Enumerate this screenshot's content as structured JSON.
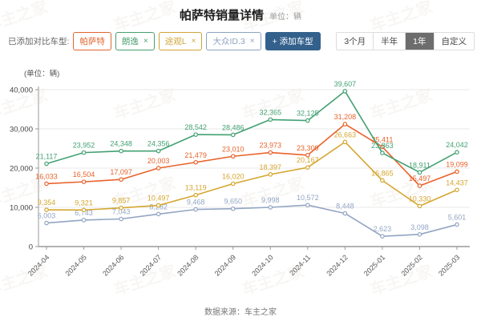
{
  "header": {
    "title": "帕萨特销量详情",
    "unit": "单位：辆"
  },
  "toolbar": {
    "compare_label": "已添加对比车型:",
    "chips": [
      {
        "label": "帕萨特",
        "color": "#e0662f",
        "closable": false
      },
      {
        "label": "朗逸",
        "color": "#4a9f6e",
        "closable": true
      },
      {
        "label": "途观L",
        "color": "#d0a437",
        "closable": true
      },
      {
        "label": "大众ID.3",
        "color": "#8ca3bf",
        "closable": true
      }
    ],
    "close_icon": "×",
    "add_button": {
      "label": "+ 添加车型",
      "color": "#33618c"
    },
    "ranges": [
      {
        "label": "3个月",
        "selected": false
      },
      {
        "label": "半年",
        "selected": false
      },
      {
        "label": "1年",
        "selected": true
      },
      {
        "label": "自定义",
        "selected": false
      }
    ]
  },
  "chart_data": {
    "type": "line",
    "unit_label": "(单位：辆)",
    "x": [
      "2024-04",
      "2024-05",
      "2024-06",
      "2024-07",
      "2024-08",
      "2024-09",
      "2024-10",
      "2024-11",
      "2024-12",
      "2025-01",
      "2025-02",
      "2025-03"
    ],
    "series": [
      {
        "name": "朗逸",
        "color": "#43a173",
        "values": [
          21117,
          23952,
          24348,
          24356,
          28542,
          28486,
          32365,
          32125,
          39607,
          23863,
          18911,
          24042
        ]
      },
      {
        "name": "帕萨特",
        "color": "#e8632c",
        "values": [
          16033,
          16504,
          17097,
          20003,
          21479,
          23010,
          23973,
          23309,
          31208,
          25411,
          15497,
          19099
        ]
      },
      {
        "name": "途观L",
        "color": "#d5a62f",
        "values": [
          9354,
          9321,
          9857,
          10497,
          13119,
          16020,
          18397,
          20167,
          26663,
          16865,
          10330,
          14437
        ]
      },
      {
        "name": "大众ID.3",
        "color": "#92a5c3",
        "values": [
          6003,
          6743,
          7043,
          8282,
          9468,
          9650,
          9998,
          10572,
          8448,
          2623,
          3098,
          5601
        ]
      }
    ],
    "ylim": [
      0,
      40000
    ],
    "yticks": [
      0,
      10000,
      20000,
      30000,
      40000
    ],
    "grid": true,
    "legend_position": "none"
  },
  "footer": {
    "source": "数据来源：车主之家"
  },
  "watermark": "车主之家"
}
